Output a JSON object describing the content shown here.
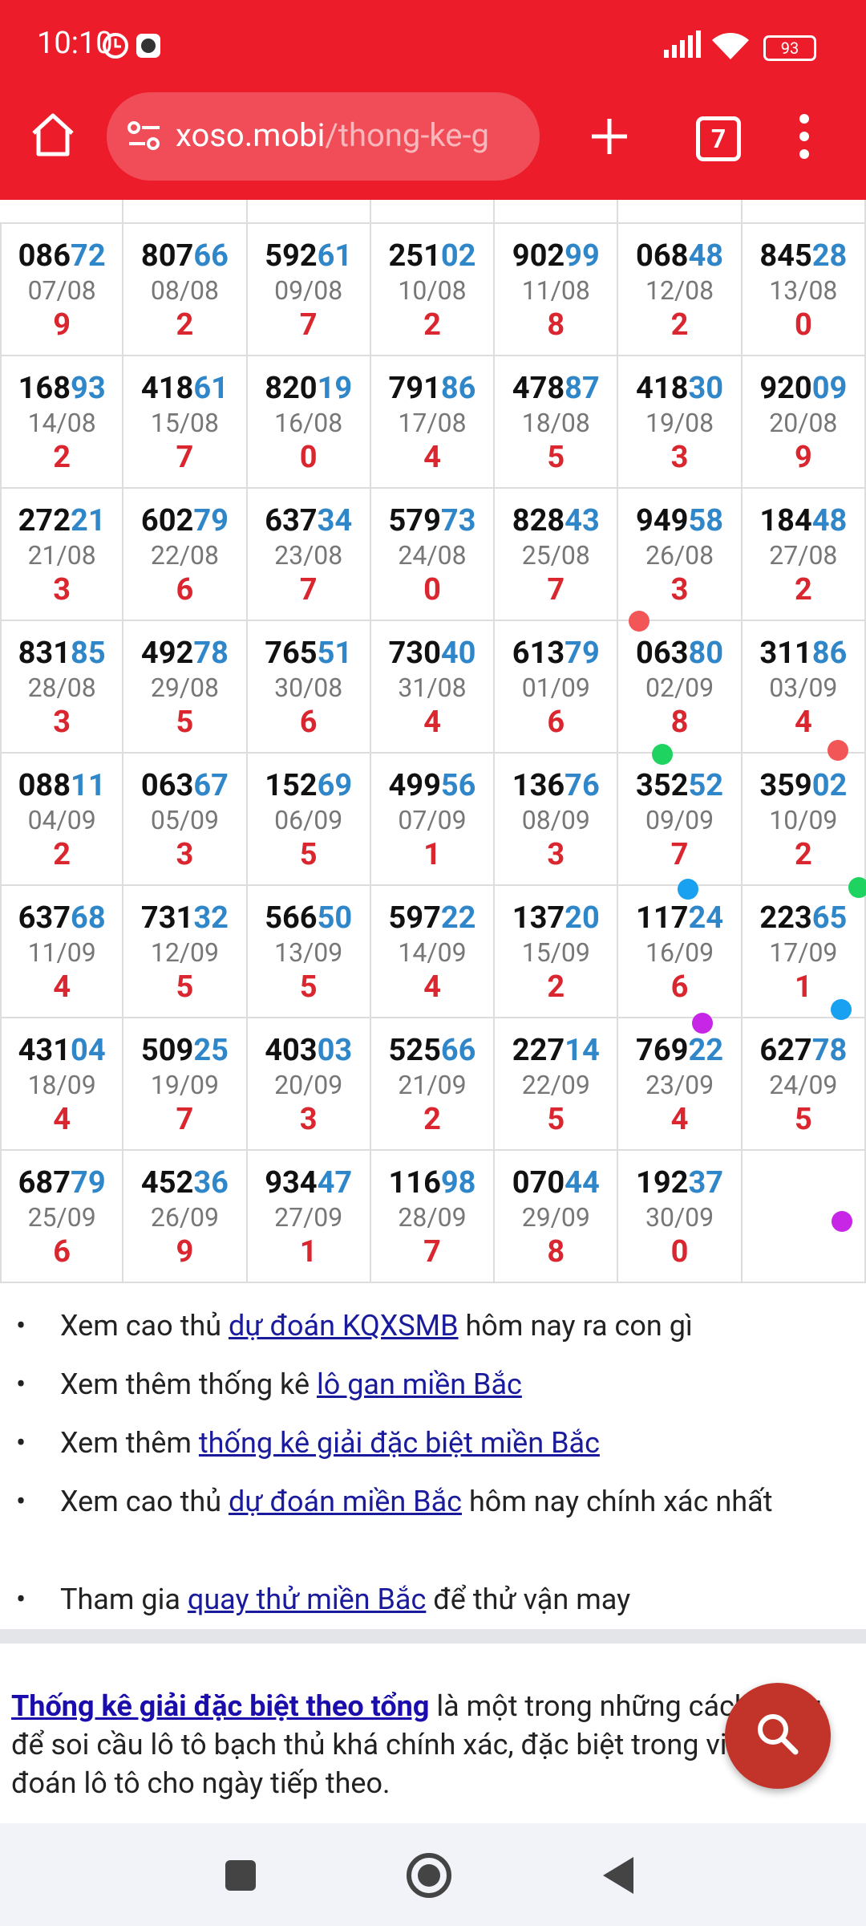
{
  "status_bar": {
    "time": "10:10",
    "battery": "93"
  },
  "address_bar": {
    "domain": "xoso.mobi",
    "path": "/thong-ke-g",
    "tab_count": "7"
  },
  "table": {
    "rows": [
      [
        {
          "head": "086",
          "tail": "72",
          "date": "07/08",
          "sum": "9"
        },
        {
          "head": "807",
          "tail": "66",
          "date": "08/08",
          "sum": "2"
        },
        {
          "head": "592",
          "tail": "61",
          "date": "09/08",
          "sum": "7"
        },
        {
          "head": "251",
          "tail": "02",
          "date": "10/08",
          "sum": "2"
        },
        {
          "head": "902",
          "tail": "99",
          "date": "11/08",
          "sum": "8"
        },
        {
          "head": "068",
          "tail": "48",
          "date": "12/08",
          "sum": "2"
        },
        {
          "head": "845",
          "tail": "28",
          "date": "13/08",
          "sum": "0"
        }
      ],
      [
        {
          "head": "168",
          "tail": "93",
          "date": "14/08",
          "sum": "2"
        },
        {
          "head": "418",
          "tail": "61",
          "date": "15/08",
          "sum": "7"
        },
        {
          "head": "820",
          "tail": "19",
          "date": "16/08",
          "sum": "0"
        },
        {
          "head": "791",
          "tail": "86",
          "date": "17/08",
          "sum": "4"
        },
        {
          "head": "478",
          "tail": "87",
          "date": "18/08",
          "sum": "5"
        },
        {
          "head": "418",
          "tail": "30",
          "date": "19/08",
          "sum": "3"
        },
        {
          "head": "920",
          "tail": "09",
          "date": "20/08",
          "sum": "9"
        }
      ],
      [
        {
          "head": "272",
          "tail": "21",
          "date": "21/08",
          "sum": "3"
        },
        {
          "head": "602",
          "tail": "79",
          "date": "22/08",
          "sum": "6"
        },
        {
          "head": "637",
          "tail": "34",
          "date": "23/08",
          "sum": "7"
        },
        {
          "head": "579",
          "tail": "73",
          "date": "24/08",
          "sum": "0"
        },
        {
          "head": "828",
          "tail": "43",
          "date": "25/08",
          "sum": "7"
        },
        {
          "head": "949",
          "tail": "58",
          "date": "26/08",
          "sum": "3"
        },
        {
          "head": "184",
          "tail": "48",
          "date": "27/08",
          "sum": "2"
        }
      ],
      [
        {
          "head": "831",
          "tail": "85",
          "date": "28/08",
          "sum": "3"
        },
        {
          "head": "492",
          "tail": "78",
          "date": "29/08",
          "sum": "5"
        },
        {
          "head": "765",
          "tail": "51",
          "date": "30/08",
          "sum": "6"
        },
        {
          "head": "730",
          "tail": "40",
          "date": "31/08",
          "sum": "4"
        },
        {
          "head": "613",
          "tail": "79",
          "date": "01/09",
          "sum": "6"
        },
        {
          "head": "063",
          "tail": "80",
          "date": "02/09",
          "sum": "8"
        },
        {
          "head": "311",
          "tail": "86",
          "date": "03/09",
          "sum": "4"
        }
      ],
      [
        {
          "head": "088",
          "tail": "11",
          "date": "04/09",
          "sum": "2"
        },
        {
          "head": "063",
          "tail": "67",
          "date": "05/09",
          "sum": "3"
        },
        {
          "head": "152",
          "tail": "69",
          "date": "06/09",
          "sum": "5"
        },
        {
          "head": "499",
          "tail": "56",
          "date": "07/09",
          "sum": "1"
        },
        {
          "head": "136",
          "tail": "76",
          "date": "08/09",
          "sum": "3"
        },
        {
          "head": "352",
          "tail": "52",
          "date": "09/09",
          "sum": "7"
        },
        {
          "head": "359",
          "tail": "02",
          "date": "10/09",
          "sum": "2"
        }
      ],
      [
        {
          "head": "637",
          "tail": "68",
          "date": "11/09",
          "sum": "4"
        },
        {
          "head": "731",
          "tail": "32",
          "date": "12/09",
          "sum": "5"
        },
        {
          "head": "566",
          "tail": "50",
          "date": "13/09",
          "sum": "5"
        },
        {
          "head": "597",
          "tail": "22",
          "date": "14/09",
          "sum": "4"
        },
        {
          "head": "137",
          "tail": "20",
          "date": "15/09",
          "sum": "2"
        },
        {
          "head": "117",
          "tail": "24",
          "date": "16/09",
          "sum": "6"
        },
        {
          "head": "223",
          "tail": "65",
          "date": "17/09",
          "sum": "1"
        }
      ],
      [
        {
          "head": "431",
          "tail": "04",
          "date": "18/09",
          "sum": "4"
        },
        {
          "head": "509",
          "tail": "25",
          "date": "19/09",
          "sum": "7"
        },
        {
          "head": "403",
          "tail": "03",
          "date": "20/09",
          "sum": "3"
        },
        {
          "head": "525",
          "tail": "66",
          "date": "21/09",
          "sum": "2"
        },
        {
          "head": "227",
          "tail": "14",
          "date": "22/09",
          "sum": "5"
        },
        {
          "head": "769",
          "tail": "22",
          "date": "23/09",
          "sum": "4"
        },
        {
          "head": "627",
          "tail": "78",
          "date": "24/09",
          "sum": "5"
        }
      ],
      [
        {
          "head": "687",
          "tail": "79",
          "date": "25/09",
          "sum": "6"
        },
        {
          "head": "452",
          "tail": "36",
          "date": "26/09",
          "sum": "9"
        },
        {
          "head": "934",
          "tail": "47",
          "date": "27/09",
          "sum": "1"
        },
        {
          "head": "116",
          "tail": "98",
          "date": "28/09",
          "sum": "7"
        },
        {
          "head": "070",
          "tail": "44",
          "date": "29/09",
          "sum": "8"
        },
        {
          "head": "192",
          "tail": "37",
          "date": "30/09",
          "sum": "0"
        }
      ]
    ]
  },
  "bullets": [
    {
      "before": "Xem cao thủ ",
      "link": "dự đoán KQXSMB",
      "after": " hôm nay ra con gì"
    },
    {
      "before": "Xem thêm thống kê ",
      "link": "lô gan miền Bắc",
      "after": ""
    },
    {
      "before": "Xem thêm ",
      "link": "thống kê giải đặc biệt miền Bắc",
      "after": ""
    },
    {
      "before": "Xem cao thủ ",
      "link": "dự đoán miền Bắc",
      "after": " hôm nay chính xác nhất"
    },
    {
      "before": "Tham gia ",
      "link": "quay thử miền Bắc",
      "after": " để thử vận may"
    }
  ],
  "paragraph": {
    "link": "Thống kê giải đặc biệt theo tổng",
    "text": " là một trong những cách dùng để soi cầu lô tô bạch thủ khá chính xác, đặc biệt trong việc dự đoán lô tô cho ngày tiếp theo."
  }
}
